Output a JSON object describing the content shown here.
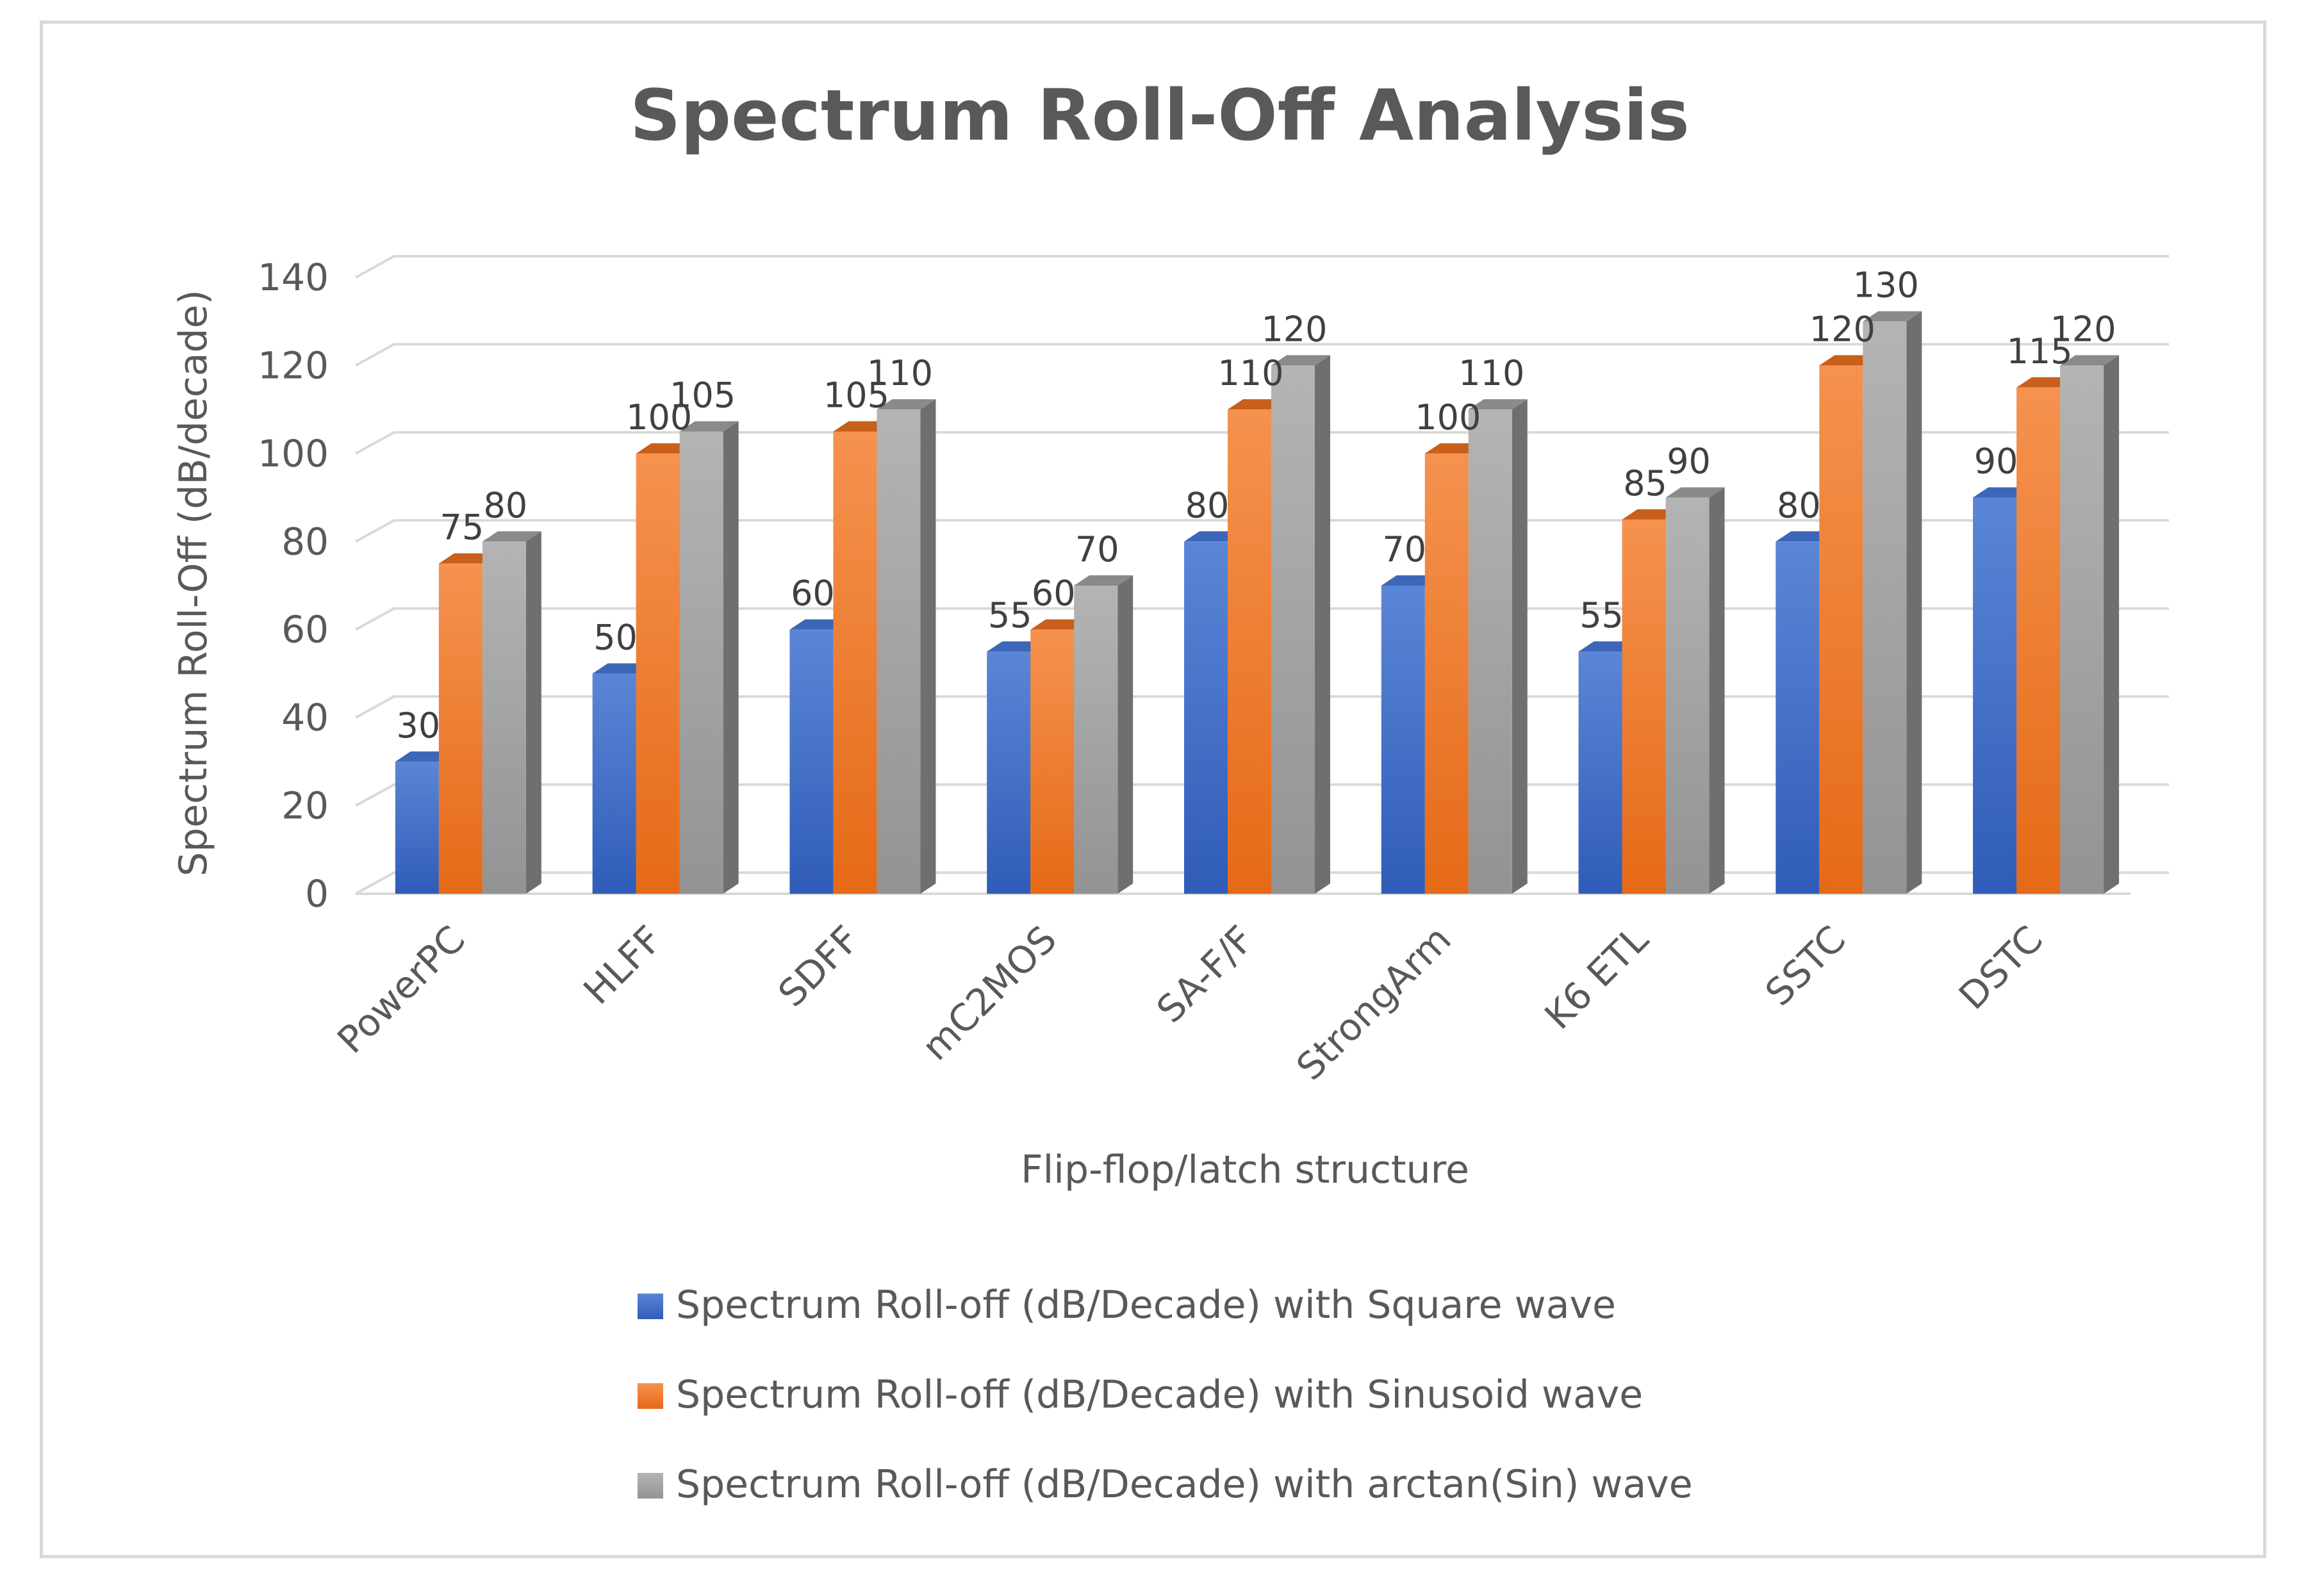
{
  "chart_data": {
    "type": "bar",
    "title": "Spectrum Roll-Off Analysis",
    "xlabel": "Flip-flop/latch structure",
    "ylabel": "Spectrum Roll-Off (dB/decade)",
    "ylim": [
      0,
      140
    ],
    "yticks": [
      0,
      20,
      40,
      60,
      80,
      100,
      120,
      140
    ],
    "categories": [
      "PowerPC",
      "HLFF",
      "SDFF",
      "mC2MOS",
      "SA-F/F",
      "StrongArm",
      "K6 ETL",
      "SSTC",
      "DSTC"
    ],
    "series": [
      {
        "name": "Spectrum Roll-off (dB/Decade)  with Square wave",
        "color": "#4472c4",
        "values": [
          30,
          50,
          60,
          55,
          80,
          70,
          55,
          80,
          90
        ]
      },
      {
        "name": "Spectrum Roll-off (dB/Decade)  with Sinusoid wave",
        "color": "#ed7d31",
        "values": [
          75,
          100,
          105,
          60,
          110,
          100,
          85,
          120,
          115
        ]
      },
      {
        "name": "Spectrum Roll-off (dB/Decade)  with arctan(Sin) wave",
        "color": "#a5a5a5",
        "values": [
          80,
          105,
          110,
          70,
          120,
          110,
          90,
          130,
          120
        ]
      }
    ],
    "grid": true,
    "legend": "bottom",
    "style": "3d-clustered-column"
  }
}
